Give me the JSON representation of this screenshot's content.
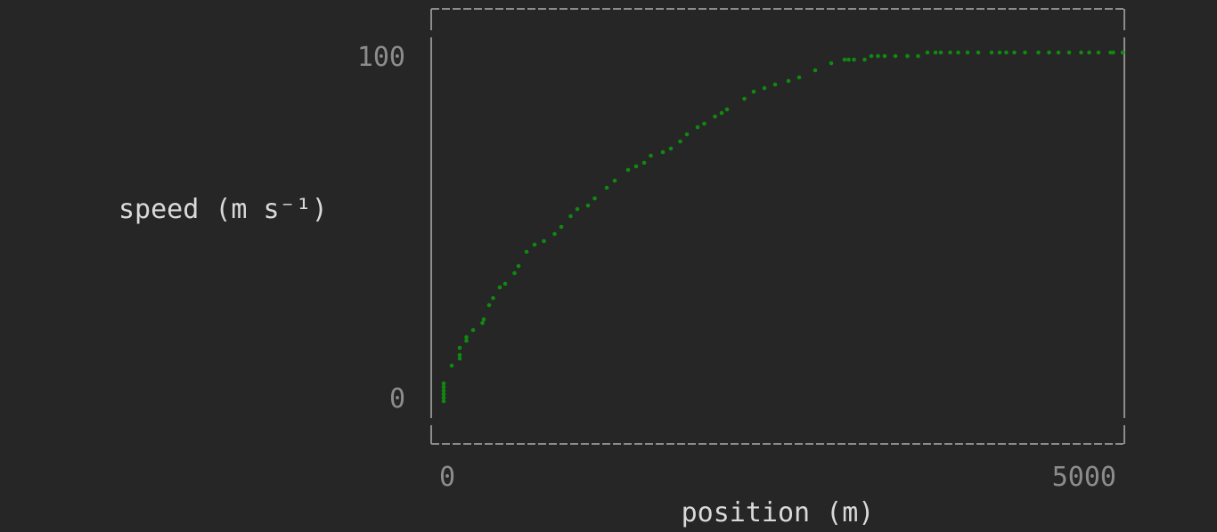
{
  "chart_data": {
    "type": "scatter",
    "title": "",
    "xlabel": "position (m)",
    "ylabel": "speed (m s⁻¹)",
    "xlim": [
      0,
      5000
    ],
    "ylim": [
      0,
      100
    ],
    "x_ticks": [
      {
        "value": 0,
        "label": "0"
      },
      {
        "value": 5000,
        "label": "5000"
      }
    ],
    "y_ticks": [
      {
        "value": 0,
        "label": "0"
      },
      {
        "value": 100,
        "label": "100"
      }
    ],
    "grid": false,
    "legend": "none",
    "point_color": "#0f8a0f",
    "series": [
      {
        "x": [
          0,
          0,
          0,
          0,
          0,
          0,
          60,
          120,
          120,
          120,
          170,
          170,
          220,
          290,
          300,
          340,
          370,
          420,
          460,
          530,
          560,
          620,
          680,
          750,
          830,
          880,
          950,
          1000,
          1080,
          1130,
          1220,
          1280,
          1380,
          1440,
          1500,
          1550,
          1640,
          1700,
          1770,
          1820,
          1900,
          1950,
          2030,
          2080,
          2120,
          2250,
          2320,
          2400,
          2480,
          2580,
          2660,
          2780,
          2900,
          3000,
          3030,
          3070,
          3150,
          3200,
          3250,
          3300,
          3380,
          3470,
          3550,
          3620,
          3680,
          3720,
          3790,
          3850,
          3920,
          4000,
          4100,
          4160,
          4210,
          4270,
          4350,
          4450,
          4530,
          4600,
          4680,
          4770,
          4830,
          4900,
          4990,
          5010,
          5080
        ],
        "y": [
          1,
          2,
          3,
          4,
          5,
          6,
          11,
          13,
          14,
          16,
          18,
          19,
          21,
          23,
          24,
          28,
          30,
          33,
          34,
          37,
          39,
          43,
          45,
          46,
          48,
          50,
          53,
          55,
          56,
          58,
          61,
          63,
          66,
          67,
          68,
          70,
          71,
          72,
          74,
          76,
          78,
          79,
          81,
          82,
          83,
          86,
          88,
          89,
          90,
          91,
          92,
          94,
          96,
          97,
          97,
          97,
          97,
          98,
          98,
          98,
          98,
          98,
          98,
          99,
          99,
          99,
          99,
          99,
          99,
          99,
          99,
          99,
          99,
          99,
          99,
          99,
          99,
          99,
          99,
          99,
          99,
          99,
          99,
          99,
          99
        ]
      }
    ]
  }
}
